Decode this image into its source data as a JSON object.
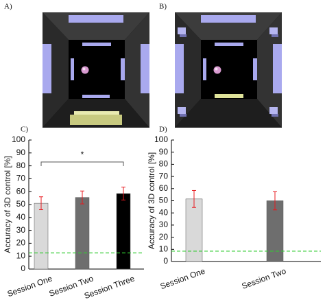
{
  "images": [
    {
      "label": "A)"
    },
    {
      "label": "B)"
    }
  ],
  "chart_data": [
    {
      "type": "bar",
      "panel": "C)",
      "ylabel": "Accuracy of 3D control [%]",
      "categories": [
        "Session One",
        "Session Two",
        "Session Three"
      ],
      "values": [
        51,
        55.5,
        58.5
      ],
      "errors": [
        5,
        5,
        5
      ],
      "colors": [
        "#d9d9d9",
        "#6e6e6e",
        "#000000"
      ],
      "error_color": "#e8191e",
      "ylim": [
        0,
        100
      ],
      "yticks": [
        0,
        10,
        20,
        30,
        40,
        50,
        60,
        70,
        80,
        90,
        100
      ],
      "reference_line": {
        "value": 12.5,
        "color": "#33cc33"
      },
      "significance": {
        "between": [
          0,
          2
        ],
        "y": 83,
        "label": "*"
      }
    },
    {
      "type": "bar",
      "panel": "D)",
      "ylabel": "Accuracy of 3D control [%]",
      "categories": [
        "Session One",
        "Session Two"
      ],
      "values": [
        51.5,
        50
      ],
      "errors": [
        7,
        7.5
      ],
      "colors": [
        "#d9d9d9",
        "#6e6e6e"
      ],
      "error_color": "#e8191e",
      "ylim": [
        0,
        100
      ],
      "yticks": [
        0,
        10,
        20,
        30,
        40,
        50,
        60,
        70,
        80,
        90,
        100
      ],
      "reference_line": {
        "value": 8.5,
        "color": "#33cc33"
      }
    }
  ]
}
